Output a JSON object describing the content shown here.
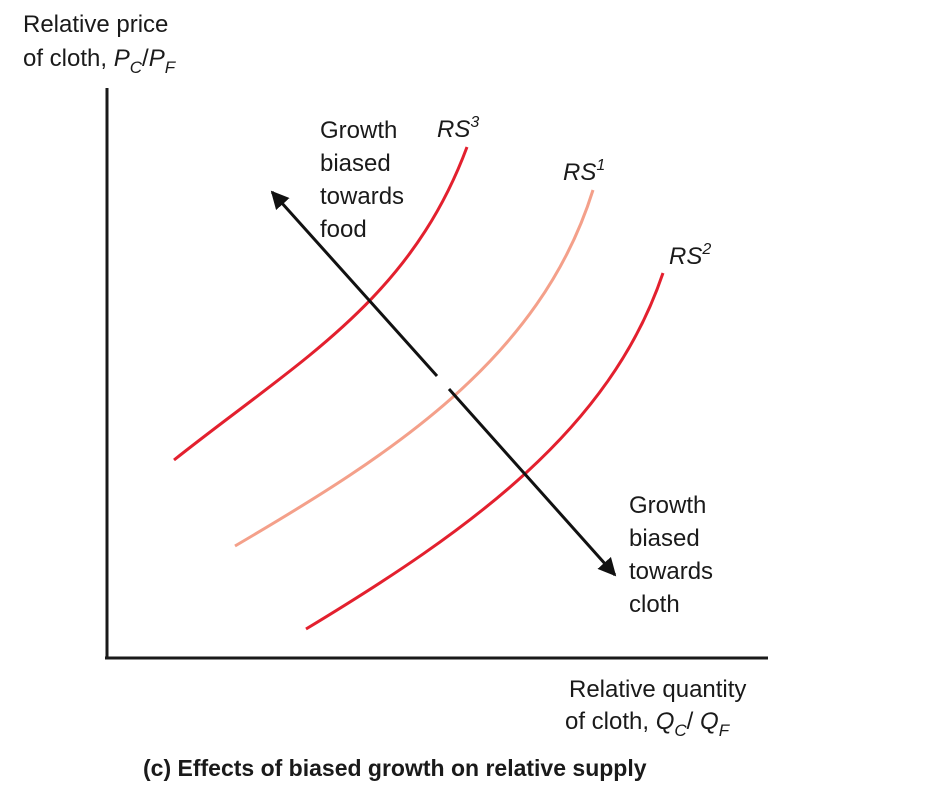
{
  "y_axis_label": {
    "line1": "Relative price",
    "line2_prefix": "of cloth, ",
    "var1": "P",
    "sub1": "C",
    "sep": "/",
    "var2": "P",
    "sub2": "F"
  },
  "x_axis_label": {
    "line1": "Relative quantity",
    "line2_prefix": "of cloth, ",
    "var1": "Q",
    "sub1": "C",
    "sep": "/ ",
    "var2": "Q",
    "sub2": "F"
  },
  "curves": [
    {
      "id": "rs3",
      "base": "RS",
      "sup": "3",
      "color": "#e3202e"
    },
    {
      "id": "rs1",
      "base": "RS",
      "sup": "1",
      "color": "#f4a08a"
    },
    {
      "id": "rs2",
      "base": "RS",
      "sup": "2",
      "color": "#e3202e"
    }
  ],
  "arrow_food": {
    "lines": [
      "Growth",
      "biased",
      "towards",
      "food"
    ]
  },
  "arrow_cloth": {
    "lines": [
      "Growth",
      "biased",
      "towards",
      "cloth"
    ]
  },
  "caption": "(c) Effects of biased growth on relative supply",
  "colors": {
    "axis": "#1a1a1a",
    "arrow": "#111111",
    "shifted_supply": "#e3202e",
    "original_supply": "#f4a08a"
  }
}
